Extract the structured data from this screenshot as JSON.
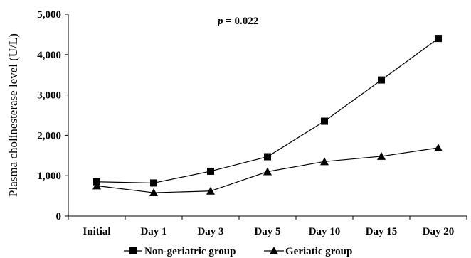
{
  "chart_data": {
    "type": "line",
    "categories": [
      "Initial",
      "Day 1",
      "Day 3",
      "Day 5",
      "Day 10",
      "Day 15",
      "Day 20"
    ],
    "series": [
      {
        "name": "Non-geriatric group",
        "marker": "square",
        "color": "#000000",
        "values": [
          850,
          820,
          1110,
          1470,
          2350,
          3370,
          4400
        ]
      },
      {
        "name": "Geriatic group",
        "marker": "triangle",
        "color": "#000000",
        "values": [
          750,
          580,
          620,
          1100,
          1350,
          1480,
          1690
        ]
      }
    ],
    "ylabel": "Plasma cholinesterase level (U/L)",
    "xlabel": "",
    "title": "",
    "ylim": [
      0,
      5000
    ],
    "yticks": [
      0,
      1000,
      2000,
      3000,
      4000,
      5000
    ],
    "ytick_labels": [
      "0",
      "1,000",
      "2,000",
      "3,000",
      "4,000",
      "5,000"
    ],
    "grid": false,
    "legend_position": "bottom",
    "annotation": {
      "symbol": "p",
      "rest": " = 0.022"
    }
  }
}
